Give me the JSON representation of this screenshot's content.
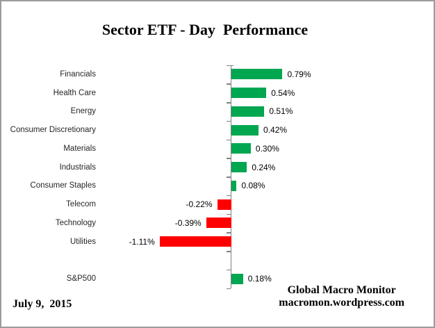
{
  "title": "Sector ETF - Day  Performance",
  "footer": {
    "date": "July 9,  2015",
    "source_line1": "Global Macro Monitor",
    "source_line2": "macromon.wordpress.com"
  },
  "colors": {
    "positive": "#00A650",
    "negative": "#FF0000",
    "axis": "#808080",
    "category_text": "#262626",
    "value_text": "#000000",
    "frame_border": "#9B9B9B"
  },
  "chart_data": {
    "type": "bar",
    "orientation": "horizontal",
    "title": "Sector ETF - Day  Performance",
    "categories": [
      "Financials",
      "Health Care",
      "Energy",
      "Consumer Discretionary",
      "Materials",
      "Industrials",
      "Consumer Staples",
      "Telecom",
      "Technology",
      "Utilities",
      "",
      "S&P500"
    ],
    "values": [
      0.79,
      0.54,
      0.51,
      0.42,
      0.3,
      0.24,
      0.08,
      -0.22,
      -0.39,
      -1.11,
      null,
      0.18
    ],
    "value_labels": [
      "0.79%",
      "0.54%",
      "0.51%",
      "0.42%",
      "0.30%",
      "0.24%",
      "0.08%",
      "-0.22%",
      "-0.39%",
      "-1.11%",
      null,
      "0.18%"
    ],
    "value_unit": "%",
    "xlabel": "",
    "ylabel": "",
    "grid": false,
    "legend": false,
    "notes": "Zero baseline drawn as vertical gray axis with outside tick marks at each category boundary; positive bars green to the right, negative bars red to the left, value labels at bar ends."
  }
}
